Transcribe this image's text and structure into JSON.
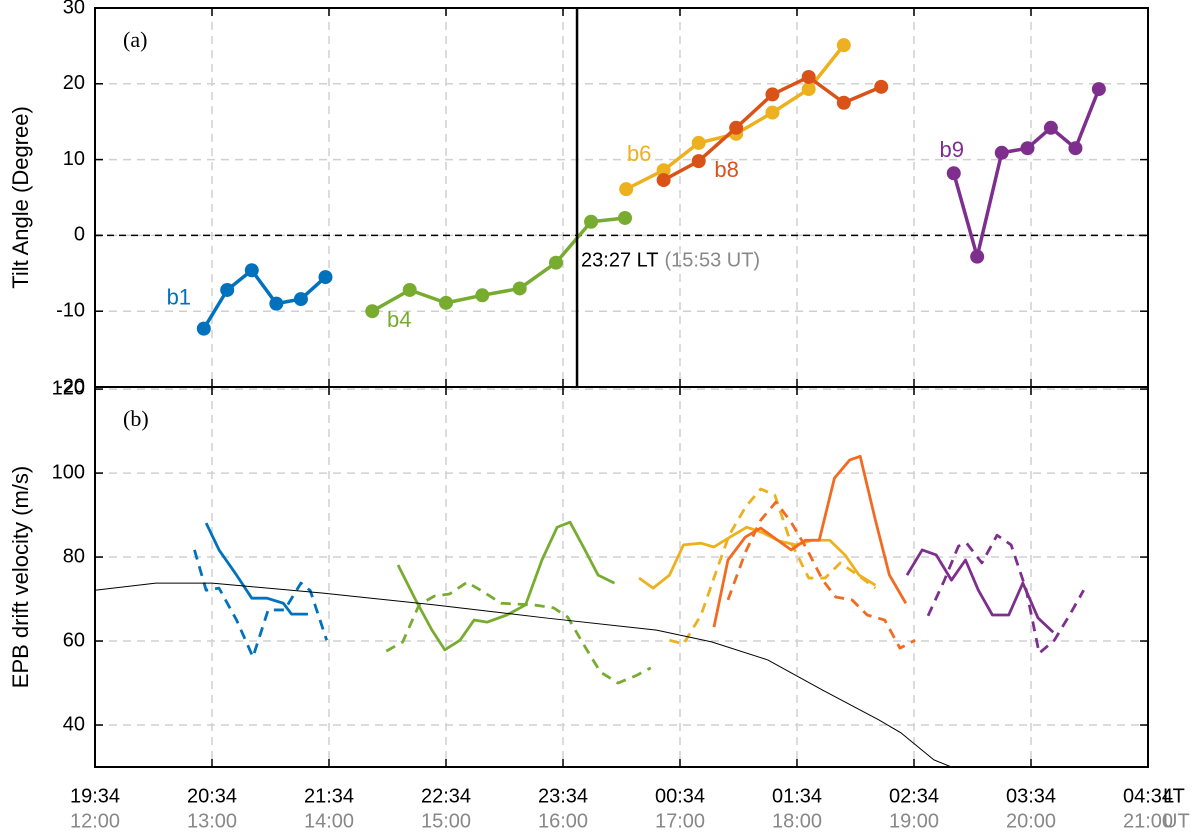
{
  "chart_data": [
    {
      "type": "line",
      "panel_label": "(a)",
      "ylabel": "Tilt Angle (Degree)",
      "xlim": [
        12,
        21
      ],
      "ylim": [
        -20,
        30
      ],
      "yticks": [
        -20,
        -10,
        0,
        10,
        20,
        30
      ],
      "grid": true,
      "hline": 0,
      "vline": 16.12,
      "annotation": "23:27 LT",
      "annotation_ut": "(15:53 UT)",
      "series": [
        {
          "name": "b1",
          "color": "#0072BD",
          "x": [
            12.93,
            13.13,
            13.34,
            13.55,
            13.76,
            13.97
          ],
          "values": [
            -12.3,
            -7.2,
            -4.6,
            -9,
            -8.4,
            -5.5
          ]
        },
        {
          "name": "b4",
          "color": "#77AC30",
          "x": [
            14.37,
            14.69,
            15.0,
            15.31,
            15.63,
            15.94,
            16.24,
            16.53
          ],
          "values": [
            -10,
            -7.2,
            -8.9,
            -7.9,
            -7,
            -3.6,
            1.8,
            2.3
          ]
        },
        {
          "name": "b6",
          "color": "#EDB120",
          "x": [
            16.54,
            16.86,
            17.16,
            17.48,
            17.79,
            18.1,
            18.4
          ],
          "values": [
            6.1,
            8.6,
            12.2,
            13.4,
            16.2,
            19.3,
            25.1
          ]
        },
        {
          "name": "b8",
          "color": "#D95319",
          "x": [
            16.86,
            17.16,
            17.48,
            17.79,
            18.1,
            18.4,
            18.72
          ],
          "values": [
            7.3,
            9.8,
            14.2,
            18.6,
            20.9,
            17.5,
            19.6
          ]
        },
        {
          "name": "b9",
          "color": "#7E2F8E",
          "x": [
            19.34,
            19.54,
            19.75,
            19.97,
            20.17,
            20.38,
            20.58
          ],
          "values": [
            8.2,
            -2.8,
            10.9,
            11.5,
            14.2,
            11.5,
            19.3
          ]
        }
      ]
    },
    {
      "type": "line",
      "panel_label": "(b)",
      "ylabel": "EPB drift velocity (m/s)",
      "xlim": [
        12,
        21
      ],
      "ylim": [
        30,
        120.5
      ],
      "yticks": [
        40,
        60,
        80,
        100,
        120
      ],
      "grid": true,
      "xticks": [
        {
          "value": 12,
          "label": "12:00"
        },
        {
          "value": 13,
          "label": "13:00"
        },
        {
          "value": 14,
          "label": "14:00"
        },
        {
          "value": 15,
          "label": "15:00"
        },
        {
          "value": 16,
          "label": "16:00"
        },
        {
          "value": 17,
          "label": "17:00"
        },
        {
          "value": 18,
          "label": "18:00"
        },
        {
          "value": 19,
          "label": "19:00"
        },
        {
          "value": 20,
          "label": "20:00"
        },
        {
          "value": 21,
          "label": "21:00"
        }
      ],
      "xticks_lt": [
        {
          "value": 12,
          "label": "19:34"
        },
        {
          "value": 13,
          "label": "20:34"
        },
        {
          "value": 14,
          "label": "21:34"
        },
        {
          "value": 15,
          "label": "22:34"
        },
        {
          "value": 16,
          "label": "23:34"
        },
        {
          "value": 17,
          "label": "00:34"
        },
        {
          "value": 18,
          "label": "01:34"
        },
        {
          "value": 19,
          "label": "02:34"
        },
        {
          "value": 20,
          "label": "03:34"
        },
        {
          "value": 21,
          "label": "04:34"
        }
      ],
      "xlabel_lt": "LT",
      "xlabel": "UT",
      "series": [
        {
          "color": "#0072BD",
          "dashed": false,
          "x": [
            12.95,
            13.06,
            13.21,
            13.34,
            13.47,
            13.61,
            13.68,
            13.82
          ],
          "values": [
            88.1,
            81.7,
            75.7,
            70.2,
            70.2,
            69,
            66.4,
            66.4
          ]
        },
        {
          "color": "#0072BD",
          "dashed": true,
          "x": [
            12.85,
            12.95,
            13.06,
            13.21,
            13.35,
            13.48,
            13.62,
            13.76,
            13.84,
            13.98
          ],
          "values": [
            81.7,
            72.1,
            72.6,
            65,
            56.2,
            67.4,
            67.4,
            73.8,
            72,
            60.2
          ]
        },
        {
          "color": "#77AC30",
          "dashed": false,
          "x": [
            14.59,
            14.74,
            14.88,
            14.99,
            15.12,
            15.24,
            15.35,
            15.52,
            15.68,
            15.82,
            15.95,
            16.06,
            16.18,
            16.3,
            16.44
          ],
          "values": [
            78.1,
            69.8,
            62.6,
            57.9,
            60.2,
            65,
            64.5,
            66.2,
            68.6,
            79.3,
            87.1,
            88.3,
            82.1,
            75.7,
            73.8
          ]
        },
        {
          "color": "#77AC30",
          "dashed": true,
          "x": [
            14.49,
            14.63,
            14.77,
            14.9,
            15.03,
            15.18,
            15.32,
            15.47,
            15.61,
            15.75,
            15.92,
            16.04,
            16.18,
            16.32,
            16.47,
            16.62,
            16.75
          ],
          "values": [
            57.6,
            59.8,
            68.6,
            70.7,
            71.2,
            74,
            71.7,
            69,
            68.8,
            68.6,
            67.9,
            65.7,
            59,
            52.6,
            50,
            51.7,
            53.6
          ]
        },
        {
          "color": "#EDB120",
          "dashed": false,
          "x": [
            16.65,
            16.77,
            16.91,
            17.03,
            17.18,
            17.29,
            17.43,
            17.57,
            17.69,
            17.85,
            17.99,
            18.13,
            18.28,
            18.41,
            18.53,
            18.67
          ],
          "values": [
            75,
            72.6,
            75.7,
            82.9,
            83.3,
            82.4,
            84.8,
            87.1,
            86,
            83.8,
            82.9,
            84,
            84,
            80.5,
            75.7,
            73.3
          ]
        },
        {
          "color": "#EDB120",
          "dashed": true,
          "x": [
            16.91,
            17.03,
            17.18,
            17.32,
            17.42,
            17.56,
            17.69,
            17.81,
            17.94,
            18.1,
            18.24,
            18.37,
            18.52,
            18.67
          ],
          "values": [
            60.2,
            59.3,
            66.2,
            77.4,
            85.2,
            91.9,
            96.2,
            94.8,
            84,
            75,
            75,
            78.6,
            75.7,
            72.6
          ]
        },
        {
          "color": "#F26B21",
          "dashed": false,
          "x": [
            17.29,
            17.41,
            17.56,
            17.69,
            17.81,
            17.95,
            18.07,
            18.19,
            18.32,
            18.45,
            18.54,
            18.67,
            18.79,
            18.93
          ],
          "values": [
            63.3,
            79.3,
            84.8,
            86.9,
            84.5,
            81.7,
            84,
            84,
            98.8,
            103.1,
            104,
            88.8,
            75.7,
            69
          ]
        },
        {
          "color": "#F26B21",
          "dashed": true,
          "x": [
            17.41,
            17.56,
            17.69,
            17.82,
            17.95,
            18.08,
            18.22,
            18.33,
            18.47,
            18.6,
            18.75,
            18.88,
            19.01
          ],
          "values": [
            69.8,
            81.2,
            88.8,
            93.1,
            88.3,
            82.1,
            74.5,
            70.5,
            69.8,
            66.2,
            65,
            58.3,
            60.2
          ]
        },
        {
          "color": "#7E2F8E",
          "dashed": false,
          "x": [
            18.94,
            19.07,
            19.19,
            19.32,
            19.44,
            19.55,
            19.67,
            19.81,
            19.93,
            20.06,
            20.19
          ],
          "values": [
            75.7,
            81.7,
            80.5,
            74.5,
            79.3,
            72.1,
            66.2,
            66.2,
            73.8,
            65.5,
            62.1
          ]
        },
        {
          "color": "#7E2F8E",
          "dashed": true,
          "x": [
            19.12,
            19.26,
            19.38,
            19.45,
            19.58,
            19.71,
            19.83,
            19.96,
            20.07,
            20.2,
            20.33,
            20.45
          ],
          "values": [
            66,
            74.5,
            82.6,
            83.3,
            78.6,
            85.2,
            82.9,
            72.1,
            57.1,
            60.2,
            66.2,
            72.1
          ]
        },
        {
          "color": "#000000",
          "dashed": false,
          "thin": true,
          "x": [
            12,
            12.52,
            13.0,
            13.95,
            14.9,
            15.85,
            16.8,
            17.27,
            17.75,
            18.22,
            18.7,
            18.89,
            19.17,
            19.32
          ],
          "values": [
            72.1,
            73.8,
            73.8,
            71.4,
            68.6,
            65.5,
            62.6,
            59.8,
            55.5,
            48.3,
            41.2,
            38.1,
            31.7,
            30
          ]
        }
      ]
    }
  ]
}
